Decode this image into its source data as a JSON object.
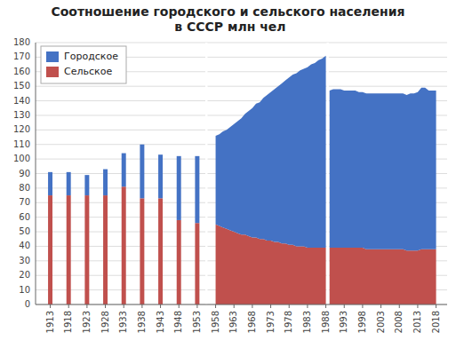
{
  "chart_data": {
    "type": "area",
    "title": "Соотношение городского и сельского населения\n в СССР  млн чел",
    "stacked": true,
    "grid": true,
    "legend": "upper left",
    "xlim": [
      1909,
      2021
    ],
    "xticks": [
      1913,
      1918,
      1923,
      1928,
      1933,
      1938,
      1943,
      1948,
      1953,
      1958,
      1963,
      1968,
      1973,
      1978,
      1983,
      1988,
      1993,
      1998,
      2003,
      2008,
      2013,
      2018
    ],
    "ylim": [
      0,
      180
    ],
    "yticks": [
      0,
      10,
      20,
      30,
      40,
      50,
      60,
      70,
      80,
      90,
      100,
      110,
      120,
      130,
      140,
      150,
      160,
      170,
      180
    ],
    "series": [
      {
        "name": "Городское",
        "color": "#4472C4",
        "type": "bar",
        "x": [
          1913,
          1918,
          1923,
          1928,
          1933,
          1938,
          1943,
          1948,
          1953
        ],
        "values": [
          16,
          16,
          14,
          18,
          23,
          37,
          30,
          44,
          46
        ]
      },
      {
        "name": "Сельское",
        "color": "#C0504D",
        "type": "bar",
        "x": [
          1913,
          1918,
          1923,
          1928,
          1933,
          1938,
          1943,
          1948,
          1953
        ],
        "values": [
          75,
          75,
          75,
          75,
          81,
          73,
          73,
          58,
          56
        ]
      },
      {
        "name": "Городское",
        "color": "#4472C4",
        "type": "area",
        "x": [
          1958,
          1959,
          1960,
          1961,
          1962,
          1963,
          1964,
          1965,
          1966,
          1967,
          1968,
          1969,
          1970,
          1971,
          1972,
          1973,
          1974,
          1975,
          1976,
          1977,
          1978,
          1979,
          1980,
          1981,
          1982,
          1983,
          1984,
          1985,
          1986,
          1987,
          1988
        ],
        "values": [
          61,
          63,
          66,
          68,
          71,
          74,
          77,
          80,
          83,
          86,
          89,
          92,
          94,
          97,
          100,
          102,
          105,
          107,
          110,
          112,
          115,
          117,
          119,
          121,
          122,
          124,
          126,
          127,
          129,
          130,
          132
        ]
      },
      {
        "name": "Сельское",
        "color": "#C0504D",
        "type": "area",
        "x": [
          1958,
          1959,
          1960,
          1961,
          1962,
          1963,
          1964,
          1965,
          1966,
          1967,
          1968,
          1969,
          1970,
          1971,
          1972,
          1973,
          1974,
          1975,
          1976,
          1977,
          1978,
          1979,
          1980,
          1981,
          1982,
          1983,
          1984,
          1985,
          1986,
          1987,
          1988
        ],
        "values": [
          55,
          54,
          53,
          52,
          51,
          50,
          49,
          48,
          48,
          47,
          46,
          46,
          45,
          45,
          44,
          44,
          43,
          43,
          42,
          42,
          41,
          41,
          40,
          40,
          40,
          39,
          39,
          39,
          39,
          39,
          39
        ]
      },
      {
        "name": "Городское",
        "color": "#4472C4",
        "type": "area",
        "x": [
          1989,
          1990,
          1991,
          1992,
          1993,
          1994,
          1995,
          1996,
          1997,
          1998,
          1999,
          2000,
          2001,
          2002,
          2003,
          2004,
          2005,
          2006,
          2007,
          2008,
          2009,
          2010,
          2011,
          2012,
          2013,
          2014,
          2015,
          2016,
          2017,
          2018
        ],
        "values": [
          108,
          109,
          109,
          109,
          108,
          108,
          108,
          108,
          107,
          107,
          107,
          107,
          107,
          107,
          107,
          107,
          107,
          107,
          107,
          107,
          107,
          107,
          108,
          108,
          109,
          111,
          111,
          109,
          109,
          109
        ]
      },
      {
        "name": "Сельское",
        "color": "#C0504D",
        "type": "area",
        "x": [
          1989,
          1990,
          1991,
          1992,
          1993,
          1994,
          1995,
          1996,
          1997,
          1998,
          1999,
          2000,
          2001,
          2002,
          2003,
          2004,
          2005,
          2006,
          2007,
          2008,
          2009,
          2010,
          2011,
          2012,
          2013,
          2014,
          2015,
          2016,
          2017,
          2018
        ],
        "values": [
          39,
          39,
          39,
          39,
          39,
          39,
          39,
          39,
          39,
          39,
          38,
          38,
          38,
          38,
          38,
          38,
          38,
          38,
          38,
          38,
          38,
          37,
          37,
          37,
          37,
          38,
          38,
          38,
          38,
          38
        ]
      }
    ]
  }
}
